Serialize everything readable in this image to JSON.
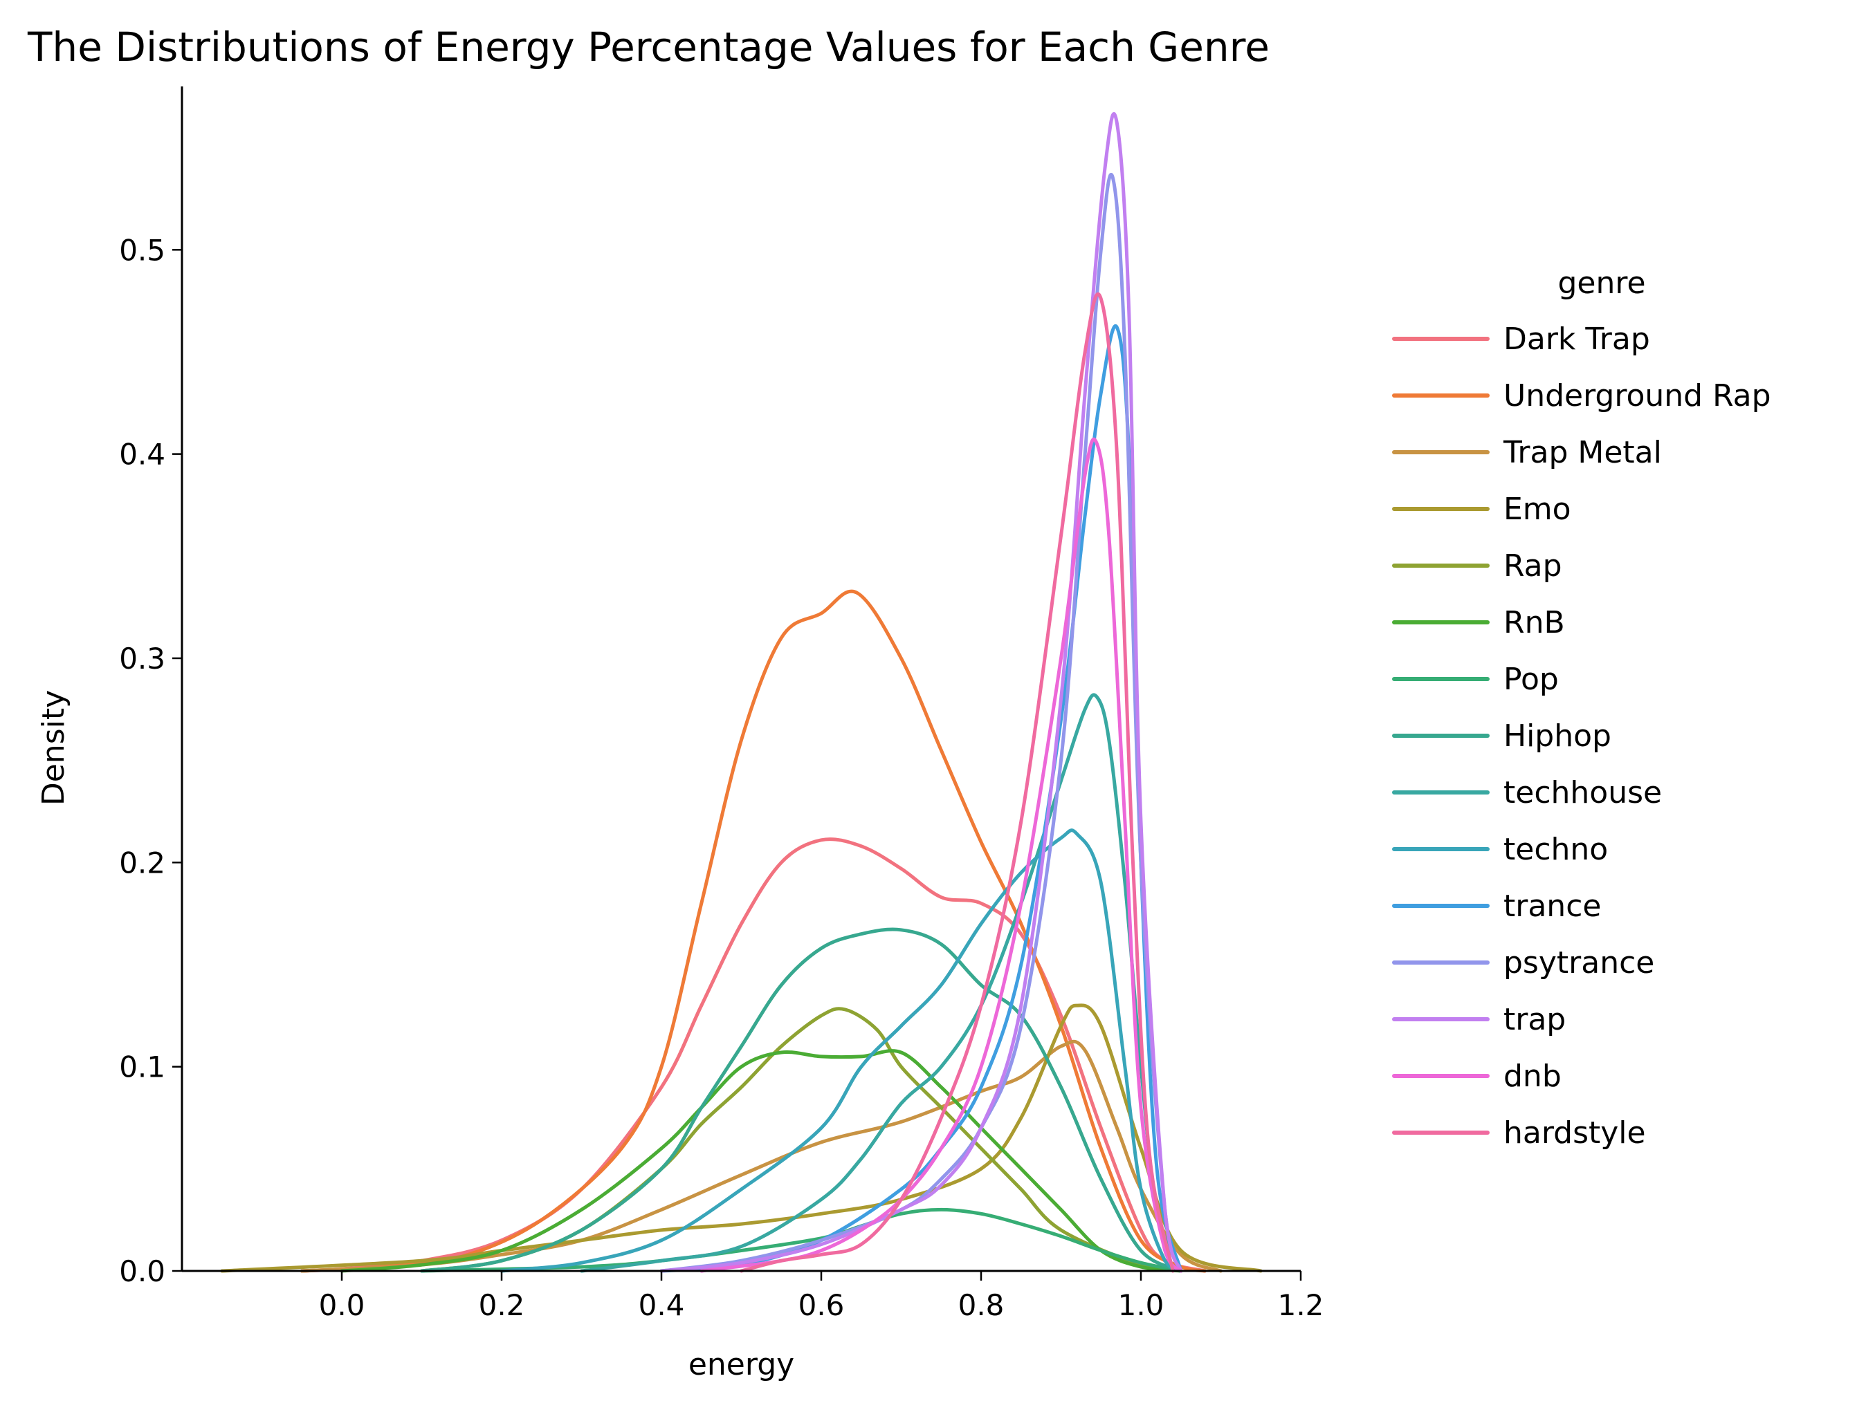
{
  "chart_data": {
    "type": "line",
    "title": "The Distributions of Energy Percentage Values for Each Genre",
    "xlabel": "energy",
    "ylabel": "Density",
    "xlim": [
      -0.2,
      1.2
    ],
    "ylim": [
      0,
      0.58
    ],
    "xticks": [
      "0.0",
      "0.2",
      "0.4",
      "0.6",
      "0.8",
      "1.0",
      "1.2"
    ],
    "yticks": [
      "0.0",
      "0.1",
      "0.2",
      "0.3",
      "0.4",
      "0.5"
    ],
    "legend": {
      "title": "genre",
      "position": "right"
    },
    "grid": false,
    "series": [
      {
        "name": "Dark Trap",
        "color": "#f2727f",
        "points": [
          [
            -0.05,
            0
          ],
          [
            0.0,
            0.001
          ],
          [
            0.1,
            0.005
          ],
          [
            0.2,
            0.015
          ],
          [
            0.3,
            0.04
          ],
          [
            0.4,
            0.09
          ],
          [
            0.45,
            0.13
          ],
          [
            0.5,
            0.17
          ],
          [
            0.55,
            0.2
          ],
          [
            0.6,
            0.211
          ],
          [
            0.65,
            0.208
          ],
          [
            0.7,
            0.197
          ],
          [
            0.75,
            0.183
          ],
          [
            0.8,
            0.18
          ],
          [
            0.85,
            0.165
          ],
          [
            0.9,
            0.125
          ],
          [
            0.95,
            0.07
          ],
          [
            1.0,
            0.02
          ],
          [
            1.03,
            0.005
          ],
          [
            1.08,
            0
          ]
        ]
      },
      {
        "name": "Underground Rap",
        "color": "#ef7a36",
        "points": [
          [
            -0.05,
            0
          ],
          [
            0.05,
            0.002
          ],
          [
            0.15,
            0.007
          ],
          [
            0.25,
            0.025
          ],
          [
            0.35,
            0.06
          ],
          [
            0.4,
            0.1
          ],
          [
            0.45,
            0.18
          ],
          [
            0.5,
            0.26
          ],
          [
            0.55,
            0.31
          ],
          [
            0.6,
            0.322
          ],
          [
            0.645,
            0.332
          ],
          [
            0.7,
            0.3
          ],
          [
            0.75,
            0.255
          ],
          [
            0.8,
            0.21
          ],
          [
            0.85,
            0.17
          ],
          [
            0.9,
            0.12
          ],
          [
            0.95,
            0.06
          ],
          [
            1.0,
            0.015
          ],
          [
            1.05,
            0.002
          ],
          [
            1.08,
            0
          ]
        ]
      },
      {
        "name": "Trap Metal",
        "color": "#c89343",
        "points": [
          [
            -0.05,
            0
          ],
          [
            0.1,
            0.003
          ],
          [
            0.2,
            0.008
          ],
          [
            0.3,
            0.015
          ],
          [
            0.4,
            0.03
          ],
          [
            0.5,
            0.047
          ],
          [
            0.6,
            0.063
          ],
          [
            0.7,
            0.073
          ],
          [
            0.8,
            0.088
          ],
          [
            0.85,
            0.095
          ],
          [
            0.9,
            0.11
          ],
          [
            0.93,
            0.108
          ],
          [
            0.97,
            0.07
          ],
          [
            1.0,
            0.04
          ],
          [
            1.05,
            0.008
          ],
          [
            1.1,
            0
          ]
        ]
      },
      {
        "name": "Emo",
        "color": "#aa9a30",
        "points": [
          [
            -0.15,
            0
          ],
          [
            0.1,
            0.005
          ],
          [
            0.2,
            0.01
          ],
          [
            0.3,
            0.015
          ],
          [
            0.4,
            0.02
          ],
          [
            0.5,
            0.023
          ],
          [
            0.6,
            0.028
          ],
          [
            0.7,
            0.035
          ],
          [
            0.8,
            0.05
          ],
          [
            0.85,
            0.075
          ],
          [
            0.9,
            0.12
          ],
          [
            0.92,
            0.13
          ],
          [
            0.95,
            0.12
          ],
          [
            1.0,
            0.06
          ],
          [
            1.05,
            0.01
          ],
          [
            1.15,
            0
          ]
        ]
      },
      {
        "name": "Rap",
        "color": "#8ea332",
        "points": [
          [
            0.1,
            0
          ],
          [
            0.2,
            0.005
          ],
          [
            0.3,
            0.02
          ],
          [
            0.4,
            0.05
          ],
          [
            0.45,
            0.072
          ],
          [
            0.5,
            0.09
          ],
          [
            0.55,
            0.11
          ],
          [
            0.6,
            0.125
          ],
          [
            0.63,
            0.128
          ],
          [
            0.67,
            0.118
          ],
          [
            0.7,
            0.1
          ],
          [
            0.75,
            0.08
          ],
          [
            0.8,
            0.06
          ],
          [
            0.85,
            0.04
          ],
          [
            0.9,
            0.02
          ],
          [
            1.0,
            0.003
          ],
          [
            1.05,
            0
          ]
        ]
      },
      {
        "name": "RnB",
        "color": "#4aac34",
        "points": [
          [
            0.0,
            0
          ],
          [
            0.1,
            0.003
          ],
          [
            0.2,
            0.01
          ],
          [
            0.3,
            0.03
          ],
          [
            0.4,
            0.06
          ],
          [
            0.45,
            0.08
          ],
          [
            0.5,
            0.1
          ],
          [
            0.55,
            0.107
          ],
          [
            0.6,
            0.105
          ],
          [
            0.65,
            0.105
          ],
          [
            0.7,
            0.107
          ],
          [
            0.75,
            0.09
          ],
          [
            0.8,
            0.07
          ],
          [
            0.85,
            0.05
          ],
          [
            0.9,
            0.03
          ],
          [
            0.95,
            0.01
          ],
          [
            1.0,
            0.002
          ],
          [
            1.05,
            0
          ]
        ]
      },
      {
        "name": "Pop",
        "color": "#36ad74",
        "points": [
          [
            0.1,
            0
          ],
          [
            0.3,
            0.002
          ],
          [
            0.4,
            0.005
          ],
          [
            0.5,
            0.01
          ],
          [
            0.6,
            0.016
          ],
          [
            0.65,
            0.022
          ],
          [
            0.7,
            0.028
          ],
          [
            0.75,
            0.03
          ],
          [
            0.8,
            0.028
          ],
          [
            0.85,
            0.023
          ],
          [
            0.9,
            0.017
          ],
          [
            0.95,
            0.01
          ],
          [
            1.0,
            0.004
          ],
          [
            1.05,
            0
          ]
        ]
      },
      {
        "name": "Hiphop",
        "color": "#37a88f",
        "points": [
          [
            0.1,
            0
          ],
          [
            0.2,
            0.005
          ],
          [
            0.3,
            0.02
          ],
          [
            0.4,
            0.05
          ],
          [
            0.45,
            0.08
          ],
          [
            0.5,
            0.11
          ],
          [
            0.55,
            0.14
          ],
          [
            0.6,
            0.158
          ],
          [
            0.65,
            0.165
          ],
          [
            0.7,
            0.167
          ],
          [
            0.75,
            0.16
          ],
          [
            0.8,
            0.14
          ],
          [
            0.85,
            0.125
          ],
          [
            0.9,
            0.09
          ],
          [
            0.95,
            0.045
          ],
          [
            1.0,
            0.01
          ],
          [
            1.05,
            0
          ]
        ]
      },
      {
        "name": "techhouse",
        "color": "#38a8a1",
        "points": [
          [
            0.3,
            0
          ],
          [
            0.4,
            0.005
          ],
          [
            0.5,
            0.012
          ],
          [
            0.6,
            0.035
          ],
          [
            0.65,
            0.055
          ],
          [
            0.7,
            0.082
          ],
          [
            0.75,
            0.1
          ],
          [
            0.8,
            0.13
          ],
          [
            0.85,
            0.18
          ],
          [
            0.9,
            0.24
          ],
          [
            0.93,
            0.275
          ],
          [
            0.945,
            0.281
          ],
          [
            0.96,
            0.26
          ],
          [
            0.98,
            0.19
          ],
          [
            1.0,
            0.1
          ],
          [
            1.02,
            0.03
          ],
          [
            1.05,
            0
          ]
        ]
      },
      {
        "name": "techno",
        "color": "#38a5b9",
        "points": [
          [
            0.2,
            0
          ],
          [
            0.3,
            0.004
          ],
          [
            0.4,
            0.015
          ],
          [
            0.5,
            0.04
          ],
          [
            0.6,
            0.07
          ],
          [
            0.65,
            0.1
          ],
          [
            0.7,
            0.12
          ],
          [
            0.75,
            0.14
          ],
          [
            0.8,
            0.17
          ],
          [
            0.85,
            0.195
          ],
          [
            0.9,
            0.212
          ],
          [
            0.92,
            0.214
          ],
          [
            0.95,
            0.19
          ],
          [
            0.98,
            0.1
          ],
          [
            1.0,
            0.04
          ],
          [
            1.03,
            0.005
          ],
          [
            1.05,
            0
          ]
        ]
      },
      {
        "name": "trance",
        "color": "#3f9ee0",
        "points": [
          [
            0.4,
            0
          ],
          [
            0.5,
            0.003
          ],
          [
            0.6,
            0.015
          ],
          [
            0.7,
            0.04
          ],
          [
            0.75,
            0.06
          ],
          [
            0.8,
            0.09
          ],
          [
            0.85,
            0.15
          ],
          [
            0.9,
            0.27
          ],
          [
            0.93,
            0.37
          ],
          [
            0.95,
            0.43
          ],
          [
            0.97,
            0.462
          ],
          [
            0.985,
            0.4
          ],
          [
            1.0,
            0.2
          ],
          [
            1.02,
            0.05
          ],
          [
            1.05,
            0
          ]
        ]
      },
      {
        "name": "psytrance",
        "color": "#9195eb",
        "points": [
          [
            0.4,
            0
          ],
          [
            0.5,
            0.005
          ],
          [
            0.6,
            0.015
          ],
          [
            0.7,
            0.03
          ],
          [
            0.75,
            0.045
          ],
          [
            0.8,
            0.07
          ],
          [
            0.85,
            0.12
          ],
          [
            0.9,
            0.25
          ],
          [
            0.93,
            0.4
          ],
          [
            0.95,
            0.5
          ],
          [
            0.965,
            0.535
          ],
          [
            0.98,
            0.45
          ],
          [
            1.0,
            0.2
          ],
          [
            1.03,
            0.03
          ],
          [
            1.05,
            0
          ]
        ]
      },
      {
        "name": "trap",
        "color": "#c17ff0",
        "points": [
          [
            0.4,
            0
          ],
          [
            0.5,
            0.004
          ],
          [
            0.6,
            0.013
          ],
          [
            0.7,
            0.03
          ],
          [
            0.75,
            0.042
          ],
          [
            0.8,
            0.07
          ],
          [
            0.85,
            0.13
          ],
          [
            0.9,
            0.28
          ],
          [
            0.93,
            0.43
          ],
          [
            0.955,
            0.54
          ],
          [
            0.97,
            0.562
          ],
          [
            0.985,
            0.47
          ],
          [
            1.0,
            0.22
          ],
          [
            1.03,
            0.03
          ],
          [
            1.05,
            0
          ]
        ]
      },
      {
        "name": "dnb",
        "color": "#ed67d8",
        "points": [
          [
            0.45,
            0
          ],
          [
            0.55,
            0.005
          ],
          [
            0.6,
            0.01
          ],
          [
            0.65,
            0.02
          ],
          [
            0.7,
            0.035
          ],
          [
            0.75,
            0.06
          ],
          [
            0.8,
            0.1
          ],
          [
            0.85,
            0.18
          ],
          [
            0.9,
            0.3
          ],
          [
            0.93,
            0.39
          ],
          [
            0.945,
            0.405
          ],
          [
            0.96,
            0.36
          ],
          [
            0.98,
            0.22
          ],
          [
            1.0,
            0.08
          ],
          [
            1.03,
            0.01
          ],
          [
            1.05,
            0
          ]
        ]
      },
      {
        "name": "hardstyle",
        "color": "#f06a9f",
        "points": [
          [
            0.5,
            0
          ],
          [
            0.55,
            0.005
          ],
          [
            0.6,
            0.008
          ],
          [
            0.65,
            0.013
          ],
          [
            0.7,
            0.035
          ],
          [
            0.75,
            0.075
          ],
          [
            0.8,
            0.13
          ],
          [
            0.85,
            0.22
          ],
          [
            0.9,
            0.36
          ],
          [
            0.93,
            0.45
          ],
          [
            0.95,
            0.476
          ],
          [
            0.97,
            0.4
          ],
          [
            0.99,
            0.2
          ],
          [
            1.01,
            0.06
          ],
          [
            1.04,
            0
          ]
        ]
      }
    ]
  }
}
